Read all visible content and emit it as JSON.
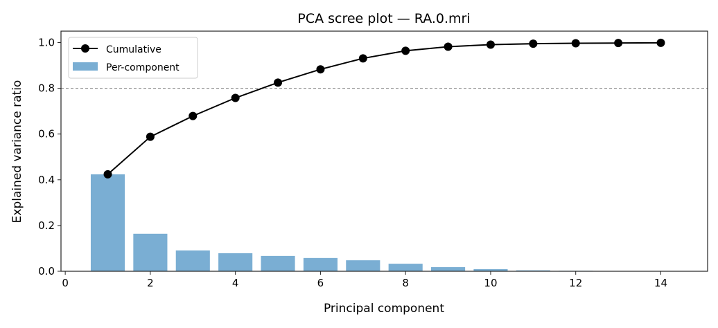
{
  "chart_data": {
    "type": "bar+line",
    "title": "PCA scree plot — RA.0.mri",
    "xlabel": "Principal component",
    "ylabel": "Explained variance ratio",
    "xlim": [
      -0.1,
      15.1
    ],
    "ylim": [
      0,
      1.05
    ],
    "xticks": [
      0,
      2,
      4,
      6,
      8,
      10,
      12,
      14
    ],
    "yticks": [
      0.0,
      0.2,
      0.4,
      0.6,
      0.8,
      1.0
    ],
    "ytick_labels": [
      "0.0",
      "0.2",
      "0.4",
      "0.6",
      "0.8",
      "1.0"
    ],
    "x": [
      1,
      2,
      3,
      4,
      5,
      6,
      7,
      8,
      9,
      10,
      11,
      12,
      13,
      14
    ],
    "series": [
      {
        "name": "Per-component",
        "type": "bar",
        "color": "#7aaed3",
        "values": [
          0.424,
          0.164,
          0.091,
          0.079,
          0.067,
          0.058,
          0.048,
          0.033,
          0.018,
          0.009,
          0.004,
          0.002,
          0.001,
          0.001
        ]
      },
      {
        "name": "Cumulative",
        "type": "line",
        "marker": "circle",
        "color": "#000000",
        "values": [
          0.424,
          0.588,
          0.679,
          0.758,
          0.825,
          0.883,
          0.931,
          0.964,
          0.982,
          0.991,
          0.995,
          0.997,
          0.998,
          0.999
        ]
      }
    ],
    "reference_line": {
      "y": 0.8,
      "style": "dashed",
      "color": "#808080"
    },
    "legend": {
      "placement": "top-left",
      "entries": [
        "Cumulative",
        "Per-component"
      ]
    },
    "grid": false
  }
}
